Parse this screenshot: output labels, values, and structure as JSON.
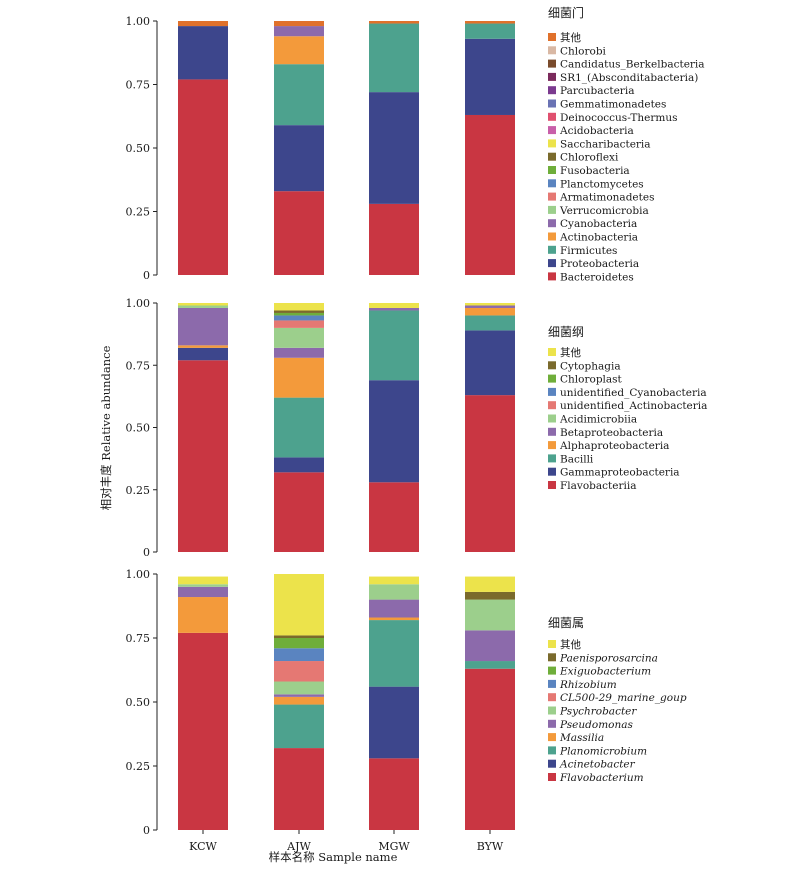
{
  "ylabel": "相对丰度 Relative abundance",
  "xlabel": "样本名称 Sample name",
  "chart_data": [
    {
      "type": "bar",
      "stacked": true,
      "legend_title": "细菌门",
      "legend_italic": false,
      "categories": [
        "KCW",
        "AJW",
        "MGW",
        "BYW"
      ],
      "ylim": [
        0,
        1
      ],
      "yticks": [
        "0",
        "0.25",
        "0.50",
        "0.75",
        "1.00"
      ],
      "series": [
        {
          "name": "Bacteroidetes",
          "color": "#c93642",
          "values": [
            0.77,
            0.33,
            0.28,
            0.63
          ]
        },
        {
          "name": "Proteobacteria",
          "color": "#3d468c",
          "values": [
            0.21,
            0.26,
            0.44,
            0.3
          ]
        },
        {
          "name": "Firmicutes",
          "color": "#4da28e",
          "values": [
            0.0,
            0.24,
            0.27,
            0.06
          ]
        },
        {
          "name": "Actinobacteria",
          "color": "#f39a3b",
          "values": [
            0.0,
            0.11,
            0.0,
            0.0
          ]
        },
        {
          "name": "Cyanobacteria",
          "color": "#8c6aab",
          "values": [
            0.0,
            0.04,
            0.0,
            0.0
          ]
        },
        {
          "name": "Verrucomicrobia",
          "color": "#9ccf8c",
          "values": [
            0.0,
            0.0,
            0.0,
            0.0
          ]
        },
        {
          "name": "Armatimonadetes",
          "color": "#e57873",
          "values": [
            0.0,
            0.0,
            0.0,
            0.0
          ]
        },
        {
          "name": "Planctomycetes",
          "color": "#5a84c0",
          "values": [
            0.0,
            0.0,
            0.0,
            0.0
          ]
        },
        {
          "name": "Fusobacteria",
          "color": "#6fae3a",
          "values": [
            0.0,
            0.0,
            0.0,
            0.0
          ]
        },
        {
          "name": "Chloroflexi",
          "color": "#7a6a2c",
          "values": [
            0.0,
            0.0,
            0.0,
            0.0
          ]
        },
        {
          "name": "Saccharibacteria",
          "color": "#ece34b",
          "values": [
            0.0,
            0.0,
            0.0,
            0.0
          ]
        },
        {
          "name": "Acidobacteria",
          "color": "#c85fa9",
          "values": [
            0.0,
            0.0,
            0.0,
            0.0
          ]
        },
        {
          "name": "Deinococcus-Thermus",
          "color": "#e0506f",
          "values": [
            0.0,
            0.0,
            0.0,
            0.0
          ]
        },
        {
          "name": "Gemmatimonadetes",
          "color": "#6a73b4",
          "values": [
            0.0,
            0.0,
            0.0,
            0.0
          ]
        },
        {
          "name": "Parcubacteria",
          "color": "#7b3a8f",
          "values": [
            0.0,
            0.0,
            0.0,
            0.0
          ]
        },
        {
          "name": "SR1_(Absconditabacteria)",
          "color": "#7b2a5c",
          "values": [
            0.0,
            0.0,
            0.0,
            0.0
          ]
        },
        {
          "name": "Candidatus_Berkelbacteria",
          "color": "#7a4b2c",
          "values": [
            0.0,
            0.0,
            0.0,
            0.0
          ]
        },
        {
          "name": "Chlorobi",
          "color": "#d9b8a4",
          "values": [
            0.0,
            0.0,
            0.0,
            0.0
          ]
        },
        {
          "name": "其他",
          "color": "#e0712b",
          "values": [
            0.02,
            0.02,
            0.01,
            0.01
          ]
        }
      ]
    },
    {
      "type": "bar",
      "stacked": true,
      "legend_title": "细菌纲",
      "legend_italic": false,
      "categories": [
        "KCW",
        "AJW",
        "MGW",
        "BYW"
      ],
      "ylim": [
        0,
        1
      ],
      "yticks": [
        "0",
        "0.25",
        "0.50",
        "0.75",
        "1.00"
      ],
      "series": [
        {
          "name": "Flavobacteriia",
          "color": "#c93642",
          "values": [
            0.77,
            0.32,
            0.28,
            0.63
          ]
        },
        {
          "name": "Gammaproteobacteria",
          "color": "#3d468c",
          "values": [
            0.05,
            0.06,
            0.41,
            0.26
          ]
        },
        {
          "name": "Bacilli",
          "color": "#4da28e",
          "values": [
            0.0,
            0.24,
            0.28,
            0.06
          ]
        },
        {
          "name": "Alphaproteobacteria",
          "color": "#f39a3b",
          "values": [
            0.01,
            0.16,
            0.0,
            0.03
          ]
        },
        {
          "name": "Betaproteobacteria",
          "color": "#8c6aab",
          "values": [
            0.15,
            0.04,
            0.01,
            0.01
          ]
        },
        {
          "name": "Acidimicrobiia",
          "color": "#9ccf8c",
          "values": [
            0.01,
            0.08,
            0.0,
            0.0
          ]
        },
        {
          "name": "unidentified_Actinobacteria",
          "color": "#e57873",
          "values": [
            0.0,
            0.03,
            0.0,
            0.0
          ]
        },
        {
          "name": "unidentified_Cyanobacteria",
          "color": "#5a84c0",
          "values": [
            0.0,
            0.02,
            0.0,
            0.0
          ]
        },
        {
          "name": "Chloroplast",
          "color": "#6fae3a",
          "values": [
            0.0,
            0.01,
            0.0,
            0.0
          ]
        },
        {
          "name": "Cytophagia",
          "color": "#7a6a2c",
          "values": [
            0.0,
            0.01,
            0.0,
            0.0
          ]
        },
        {
          "name": "其他",
          "color": "#ece34b",
          "values": [
            0.01,
            0.03,
            0.02,
            0.01
          ]
        }
      ]
    },
    {
      "type": "bar",
      "stacked": true,
      "legend_title": "细菌属",
      "legend_italic": true,
      "categories": [
        "KCW",
        "AJW",
        "MGW",
        "BYW"
      ],
      "ylim": [
        0,
        1
      ],
      "yticks": [
        "0",
        "0.25",
        "0.50",
        "0.75",
        "1.00"
      ],
      "series": [
        {
          "name": "Flavobacterium",
          "color": "#c93642",
          "values": [
            0.77,
            0.32,
            0.28,
            0.63
          ]
        },
        {
          "name": "Acinetobacter",
          "color": "#3d468c",
          "values": [
            0.0,
            0.0,
            0.28,
            0.0
          ]
        },
        {
          "name": "Planomicrobium",
          "color": "#4da28e",
          "values": [
            0.0,
            0.17,
            0.26,
            0.03
          ]
        },
        {
          "name": "Massilia",
          "color": "#f39a3b",
          "values": [
            0.14,
            0.03,
            0.01,
            0.0
          ]
        },
        {
          "name": "Pseudomonas",
          "color": "#8c6aab",
          "values": [
            0.04,
            0.01,
            0.07,
            0.12
          ]
        },
        {
          "name": "Psychrobacter",
          "color": "#9ccf8c",
          "values": [
            0.01,
            0.05,
            0.06,
            0.12
          ]
        },
        {
          "name": "CL500-29_marine_goup",
          "color": "#e57873",
          "values": [
            0.0,
            0.08,
            0.0,
            0.0
          ]
        },
        {
          "name": "Rhizobium",
          "color": "#5a84c0",
          "values": [
            0.0,
            0.05,
            0.0,
            0.0
          ]
        },
        {
          "name": "Exiguobacterium",
          "color": "#6fae3a",
          "values": [
            0.0,
            0.04,
            0.0,
            0.0
          ]
        },
        {
          "name": "Paenisporosarcina",
          "color": "#7a6a2c",
          "values": [
            0.0,
            0.01,
            0.0,
            0.03
          ]
        },
        {
          "name": "其他",
          "color": "#ece34b",
          "values": [
            0.03,
            0.24,
            0.03,
            0.06
          ]
        }
      ]
    }
  ]
}
